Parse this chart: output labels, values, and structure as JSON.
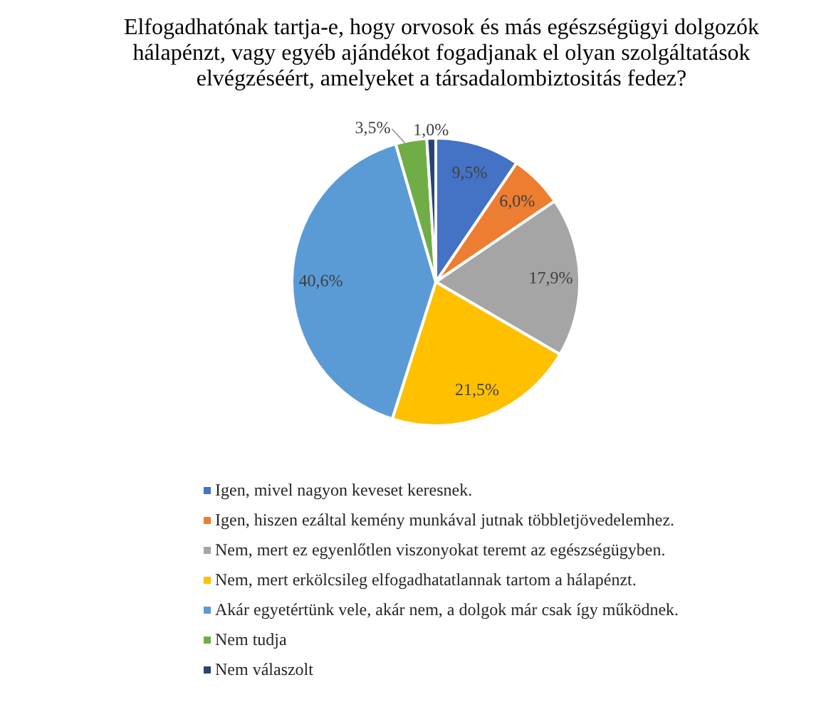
{
  "chart_data": {
    "type": "pie",
    "title": "Elfogadhatónak tartja-e, hogy orvosok és más egészségügyi dolgozók hálapénzt, vagy egyéb ajándékot fogadjanak el olyan szolgáltatások elvégzéséért, amelyeket a társadalombiztositás fedez?",
    "categories": [
      "Igen, mivel nagyon keveset keresnek.",
      "Igen, hiszen ezáltal kemény munkával jutnak többletjövedelemhez.",
      "Nem, mert ez egyenlőtlen viszonyokat teremt az egészségügyben.",
      "Nem, mert erkölcsileg elfogadhatatlannak tartom a hálapénzt.",
      "Akár egyetértünk vele, akár nem, a dolgok már csak így működnek.",
      "Nem tudja",
      "Nem válaszolt"
    ],
    "values": [
      9.5,
      6.0,
      17.9,
      21.5,
      40.6,
      3.5,
      1.0
    ],
    "value_labels": [
      "9,5%",
      "6,0%",
      "17,9%",
      "21,5%",
      "40,6%",
      "3,5%",
      "1,0%"
    ],
    "colors": [
      "#4472c4",
      "#ed7d31",
      "#a5a5a5",
      "#ffc000",
      "#5b9bd5",
      "#70ad47",
      "#264478"
    ],
    "legend": "bottom"
  }
}
